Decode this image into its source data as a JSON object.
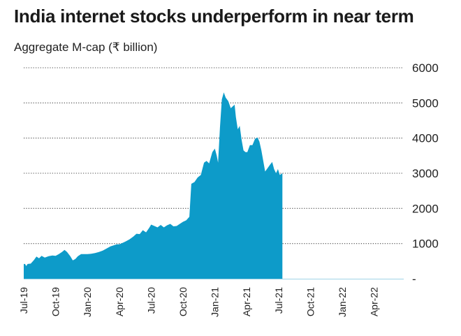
{
  "chart_data": {
    "type": "area",
    "title": "India internet stocks underperform in near term",
    "subtitle": "Aggregate M-cap (₹ billion)",
    "ylim": [
      0,
      6000
    ],
    "yticks": [
      {
        "value": 0,
        "label": "-"
      },
      {
        "value": 1000,
        "label": "1000"
      },
      {
        "value": 2000,
        "label": "2000"
      },
      {
        "value": 3000,
        "label": "3000"
      },
      {
        "value": 4000,
        "label": "4000"
      },
      {
        "value": 5000,
        "label": "5000"
      },
      {
        "value": 6000,
        "label": "6000"
      }
    ],
    "xticks": [
      "Jul-19",
      "Oct-19",
      "Jan-20",
      "Apr-20",
      "Jul-20",
      "Oct-20",
      "Jan-21",
      "Apr-21",
      "Jul-21",
      "Oct-21",
      "Jan-22",
      "Apr-22"
    ],
    "x_start": "Jul-19",
    "x_end": "Jul-22",
    "grid": "horizontal-dotted",
    "colors": {
      "fill": "#0d9bc9",
      "grid": "#444444",
      "text": "#222222"
    },
    "points": [
      [
        0.0,
        420
      ],
      [
        0.04,
        420
      ],
      [
        0.08,
        360
      ],
      [
        0.12,
        420
      ],
      [
        0.22,
        430
      ],
      [
        0.32,
        530
      ],
      [
        0.4,
        630
      ],
      [
        0.48,
        580
      ],
      [
        0.56,
        650
      ],
      [
        0.66,
        600
      ],
      [
        0.78,
        640
      ],
      [
        0.9,
        660
      ],
      [
        1.0,
        650
      ],
      [
        1.1,
        700
      ],
      [
        1.2,
        760
      ],
      [
        1.28,
        820
      ],
      [
        1.36,
        760
      ],
      [
        1.46,
        640
      ],
      [
        1.54,
        520
      ],
      [
        1.62,
        560
      ],
      [
        1.7,
        640
      ],
      [
        1.8,
        700
      ],
      [
        1.9,
        700
      ],
      [
        2.0,
        700
      ],
      [
        2.12,
        710
      ],
      [
        2.24,
        730
      ],
      [
        2.36,
        760
      ],
      [
        2.48,
        800
      ],
      [
        2.6,
        860
      ],
      [
        2.72,
        920
      ],
      [
        2.82,
        950
      ],
      [
        2.92,
        980
      ],
      [
        3.0,
        980
      ],
      [
        3.1,
        1020
      ],
      [
        3.2,
        1060
      ],
      [
        3.32,
        1120
      ],
      [
        3.44,
        1200
      ],
      [
        3.54,
        1280
      ],
      [
        3.64,
        1270
      ],
      [
        3.74,
        1380
      ],
      [
        3.84,
        1320
      ],
      [
        3.94,
        1450
      ],
      [
        4.0,
        1540
      ],
      [
        4.1,
        1500
      ],
      [
        4.2,
        1460
      ],
      [
        4.3,
        1530
      ],
      [
        4.4,
        1460
      ],
      [
        4.5,
        1520
      ],
      [
        4.6,
        1560
      ],
      [
        4.7,
        1490
      ],
      [
        4.8,
        1500
      ],
      [
        4.9,
        1560
      ],
      [
        5.0,
        1620
      ],
      [
        5.1,
        1660
      ],
      [
        5.2,
        1760
      ],
      [
        5.26,
        2700
      ],
      [
        5.36,
        2750
      ],
      [
        5.46,
        2880
      ],
      [
        5.56,
        2950
      ],
      [
        5.66,
        3300
      ],
      [
        5.74,
        3350
      ],
      [
        5.82,
        3280
      ],
      [
        5.92,
        3600
      ],
      [
        6.0,
        3700
      ],
      [
        6.06,
        3500
      ],
      [
        6.1,
        3300
      ],
      [
        6.16,
        4300
      ],
      [
        6.22,
        5100
      ],
      [
        6.28,
        5300
      ],
      [
        6.34,
        5150
      ],
      [
        6.42,
        5050
      ],
      [
        6.5,
        4850
      ],
      [
        6.56,
        4900
      ],
      [
        6.62,
        4950
      ],
      [
        6.66,
        4600
      ],
      [
        6.72,
        4250
      ],
      [
        6.78,
        4350
      ],
      [
        6.84,
        3950
      ],
      [
        6.9,
        3650
      ],
      [
        6.96,
        3600
      ],
      [
        7.02,
        3600
      ],
      [
        7.1,
        3800
      ],
      [
        7.18,
        3800
      ],
      [
        7.26,
        3980
      ],
      [
        7.34,
        4020
      ],
      [
        7.4,
        3900
      ],
      [
        7.46,
        3650
      ],
      [
        7.52,
        3350
      ],
      [
        7.58,
        3050
      ],
      [
        7.66,
        3150
      ],
      [
        7.74,
        3250
      ],
      [
        7.8,
        3320
      ],
      [
        7.86,
        3120
      ],
      [
        7.92,
        3000
      ],
      [
        7.98,
        3120
      ],
      [
        8.04,
        2950
      ],
      [
        8.12,
        3000
      ]
    ]
  }
}
